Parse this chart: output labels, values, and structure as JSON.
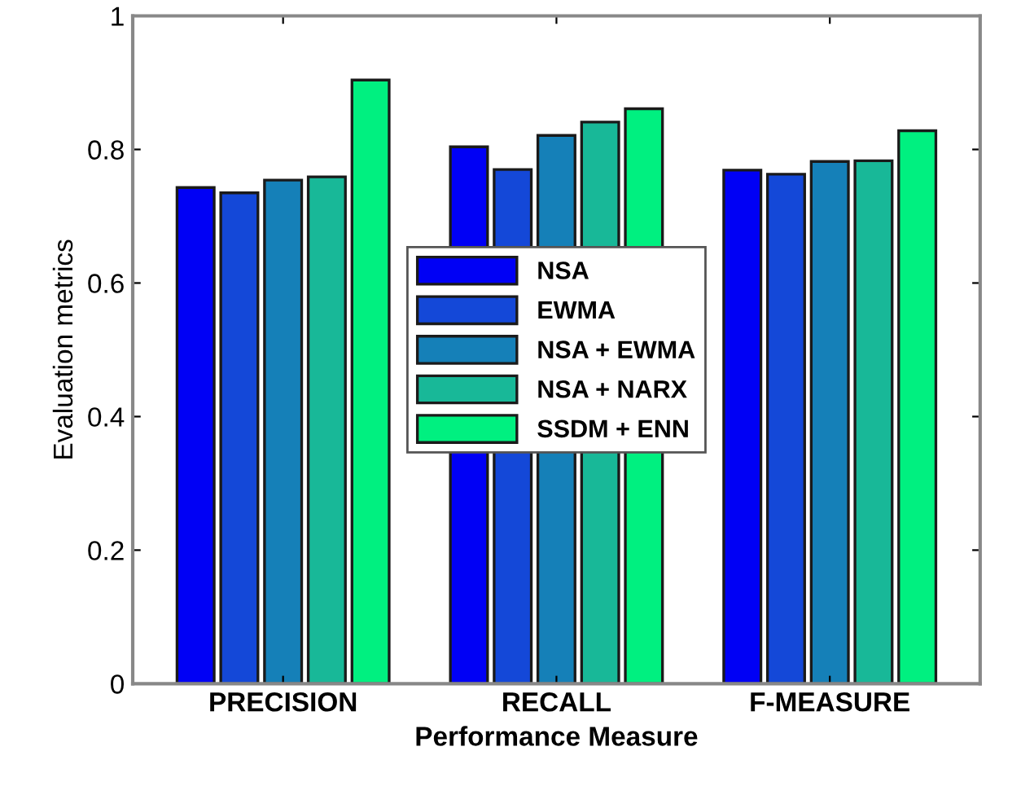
{
  "chart_data": {
    "type": "bar",
    "xlabel": "Performance Measure",
    "ylabel": "Evaluation metrics",
    "categories": [
      "PRECISION",
      "RECALL",
      "F-MEASURE"
    ],
    "series": [
      {
        "name": "NSA",
        "color": "#0000f5",
        "values": [
          0.743,
          0.804,
          0.769
        ]
      },
      {
        "name": "EWMA",
        "color": "#1448d8",
        "values": [
          0.735,
          0.77,
          0.763
        ]
      },
      {
        "name": "NSA + EWMA",
        "color": "#1580b8",
        "values": [
          0.754,
          0.821,
          0.782
        ]
      },
      {
        "name": "NSA + NARX",
        "color": "#18b898",
        "values": [
          0.759,
          0.841,
          0.783
        ]
      },
      {
        "name": "SSDM + ENN",
        "color": "#00f080",
        "values": [
          0.904,
          0.861,
          0.828
        ]
      }
    ],
    "ylim": [
      0,
      1
    ],
    "yticks": [
      0,
      0.2,
      0.4,
      0.6,
      0.8,
      1
    ],
    "grid": false,
    "legend": "center"
  }
}
